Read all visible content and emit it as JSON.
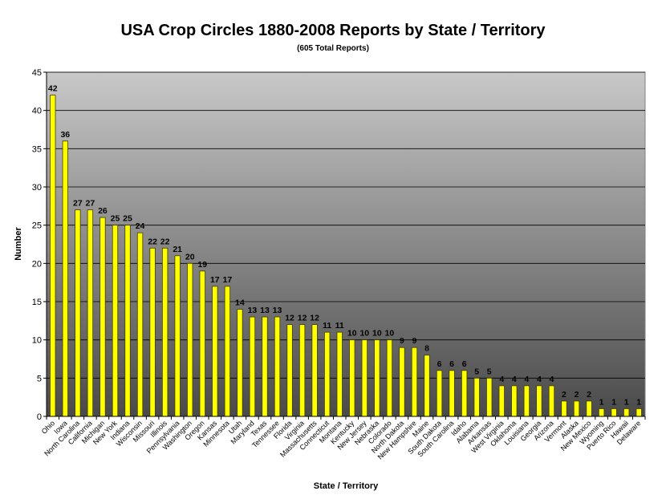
{
  "chart_data": {
    "type": "bar",
    "title": "USA Crop Circles 1880-2008 Reports by State / Territory",
    "subtitle": "(605 Total Reports)",
    "xlabel": "State / Territory",
    "ylabel": "Number",
    "ylim": [
      0,
      45
    ],
    "yticks": [
      0,
      5,
      10,
      15,
      20,
      25,
      30,
      35,
      40,
      45
    ],
    "grid": true,
    "categories": [
      "Ohio",
      "Iowa",
      "North Carolina",
      "California",
      "Michigan",
      "New York",
      "Indiana",
      "Wisconsin",
      "Missouri",
      "Illinois",
      "Pennsylvania",
      "Washington",
      "Oregon",
      "Kansas",
      "Minnesota",
      "Utah",
      "Maryland",
      "Texas",
      "Tennessee",
      "Florida",
      "Virginia",
      "Massachusetts",
      "Connecticut",
      "Montana",
      "Kentucky",
      "New Jersey",
      "Nebraska",
      "Colorado",
      "North Dakota",
      "New Hampshire",
      "Maine",
      "South Dakota",
      "South Carolina",
      "Idaho",
      "Alabama",
      "Arkansas",
      "West Virginia",
      "Oklahoma",
      "Louisiana",
      "Georgia",
      "Arizona",
      "Vermont",
      "Alaska",
      "New Mexico",
      "Wyoming",
      "Puerto Rico",
      "Hawaii",
      "Delaware"
    ],
    "values": [
      42,
      36,
      27,
      27,
      26,
      25,
      25,
      24,
      22,
      22,
      21,
      20,
      19,
      17,
      17,
      14,
      13,
      13,
      13,
      12,
      12,
      12,
      11,
      11,
      10,
      10,
      10,
      10,
      9,
      9,
      8,
      6,
      6,
      6,
      5,
      5,
      4,
      4,
      4,
      4,
      4,
      2,
      2,
      2,
      1,
      1,
      1,
      1
    ],
    "colors": {
      "bar_fill": "#ffff00",
      "bar_stroke": "#404000",
      "gridline": "#000000",
      "plot_bg_top": "#c8c8c8",
      "plot_bg_bottom": "#4a4a4a"
    }
  }
}
